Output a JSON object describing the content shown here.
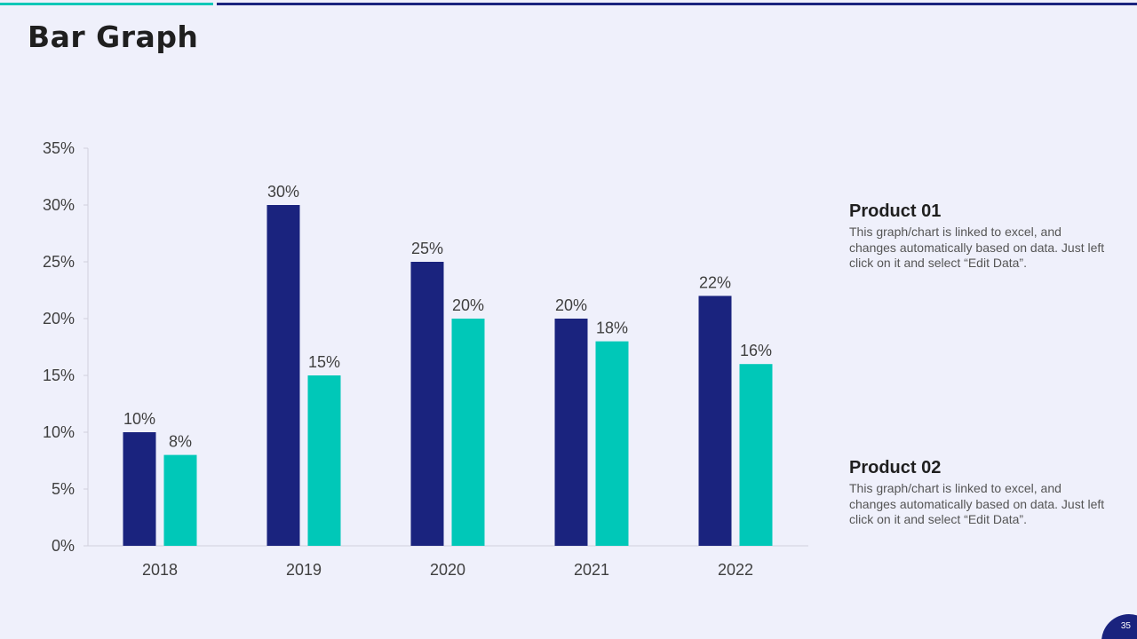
{
  "slide": {
    "title": "Bar Graph",
    "page_number": "35",
    "accent_colors": {
      "teal": "#10c8b8",
      "navy": "#1a237e"
    }
  },
  "products": [
    {
      "heading": "Product 01",
      "description": "This graph/chart is linked to excel, and changes automatically based on data. Just left click on it and select “Edit Data”."
    },
    {
      "heading": "Product 02",
      "description": "This graph/chart is linked to excel, and changes automatically based on data. Just left click on it and select “Edit Data”."
    }
  ],
  "chart_data": {
    "type": "bar",
    "categories": [
      "2018",
      "2019",
      "2020",
      "2021",
      "2022"
    ],
    "series": [
      {
        "color": "#1a237e",
        "values": [
          10,
          30,
          25,
          20,
          22
        ],
        "labels": [
          "10%",
          "30%",
          "25%",
          "20%",
          "22%"
        ]
      },
      {
        "color": "#00c8b8",
        "values": [
          8,
          15,
          20,
          18,
          16
        ],
        "labels": [
          "8%",
          "15%",
          "20%",
          "18%",
          "16%"
        ]
      }
    ],
    "ylim": [
      0,
      35
    ],
    "yticks": [
      0,
      5,
      10,
      15,
      20,
      25,
      30,
      35
    ],
    "ytick_labels": [
      "0%",
      "5%",
      "10%",
      "15%",
      "20%",
      "25%",
      "30%",
      "35%"
    ],
    "title": "",
    "xlabel": "",
    "ylabel": "",
    "grid": false,
    "legend": "none"
  }
}
